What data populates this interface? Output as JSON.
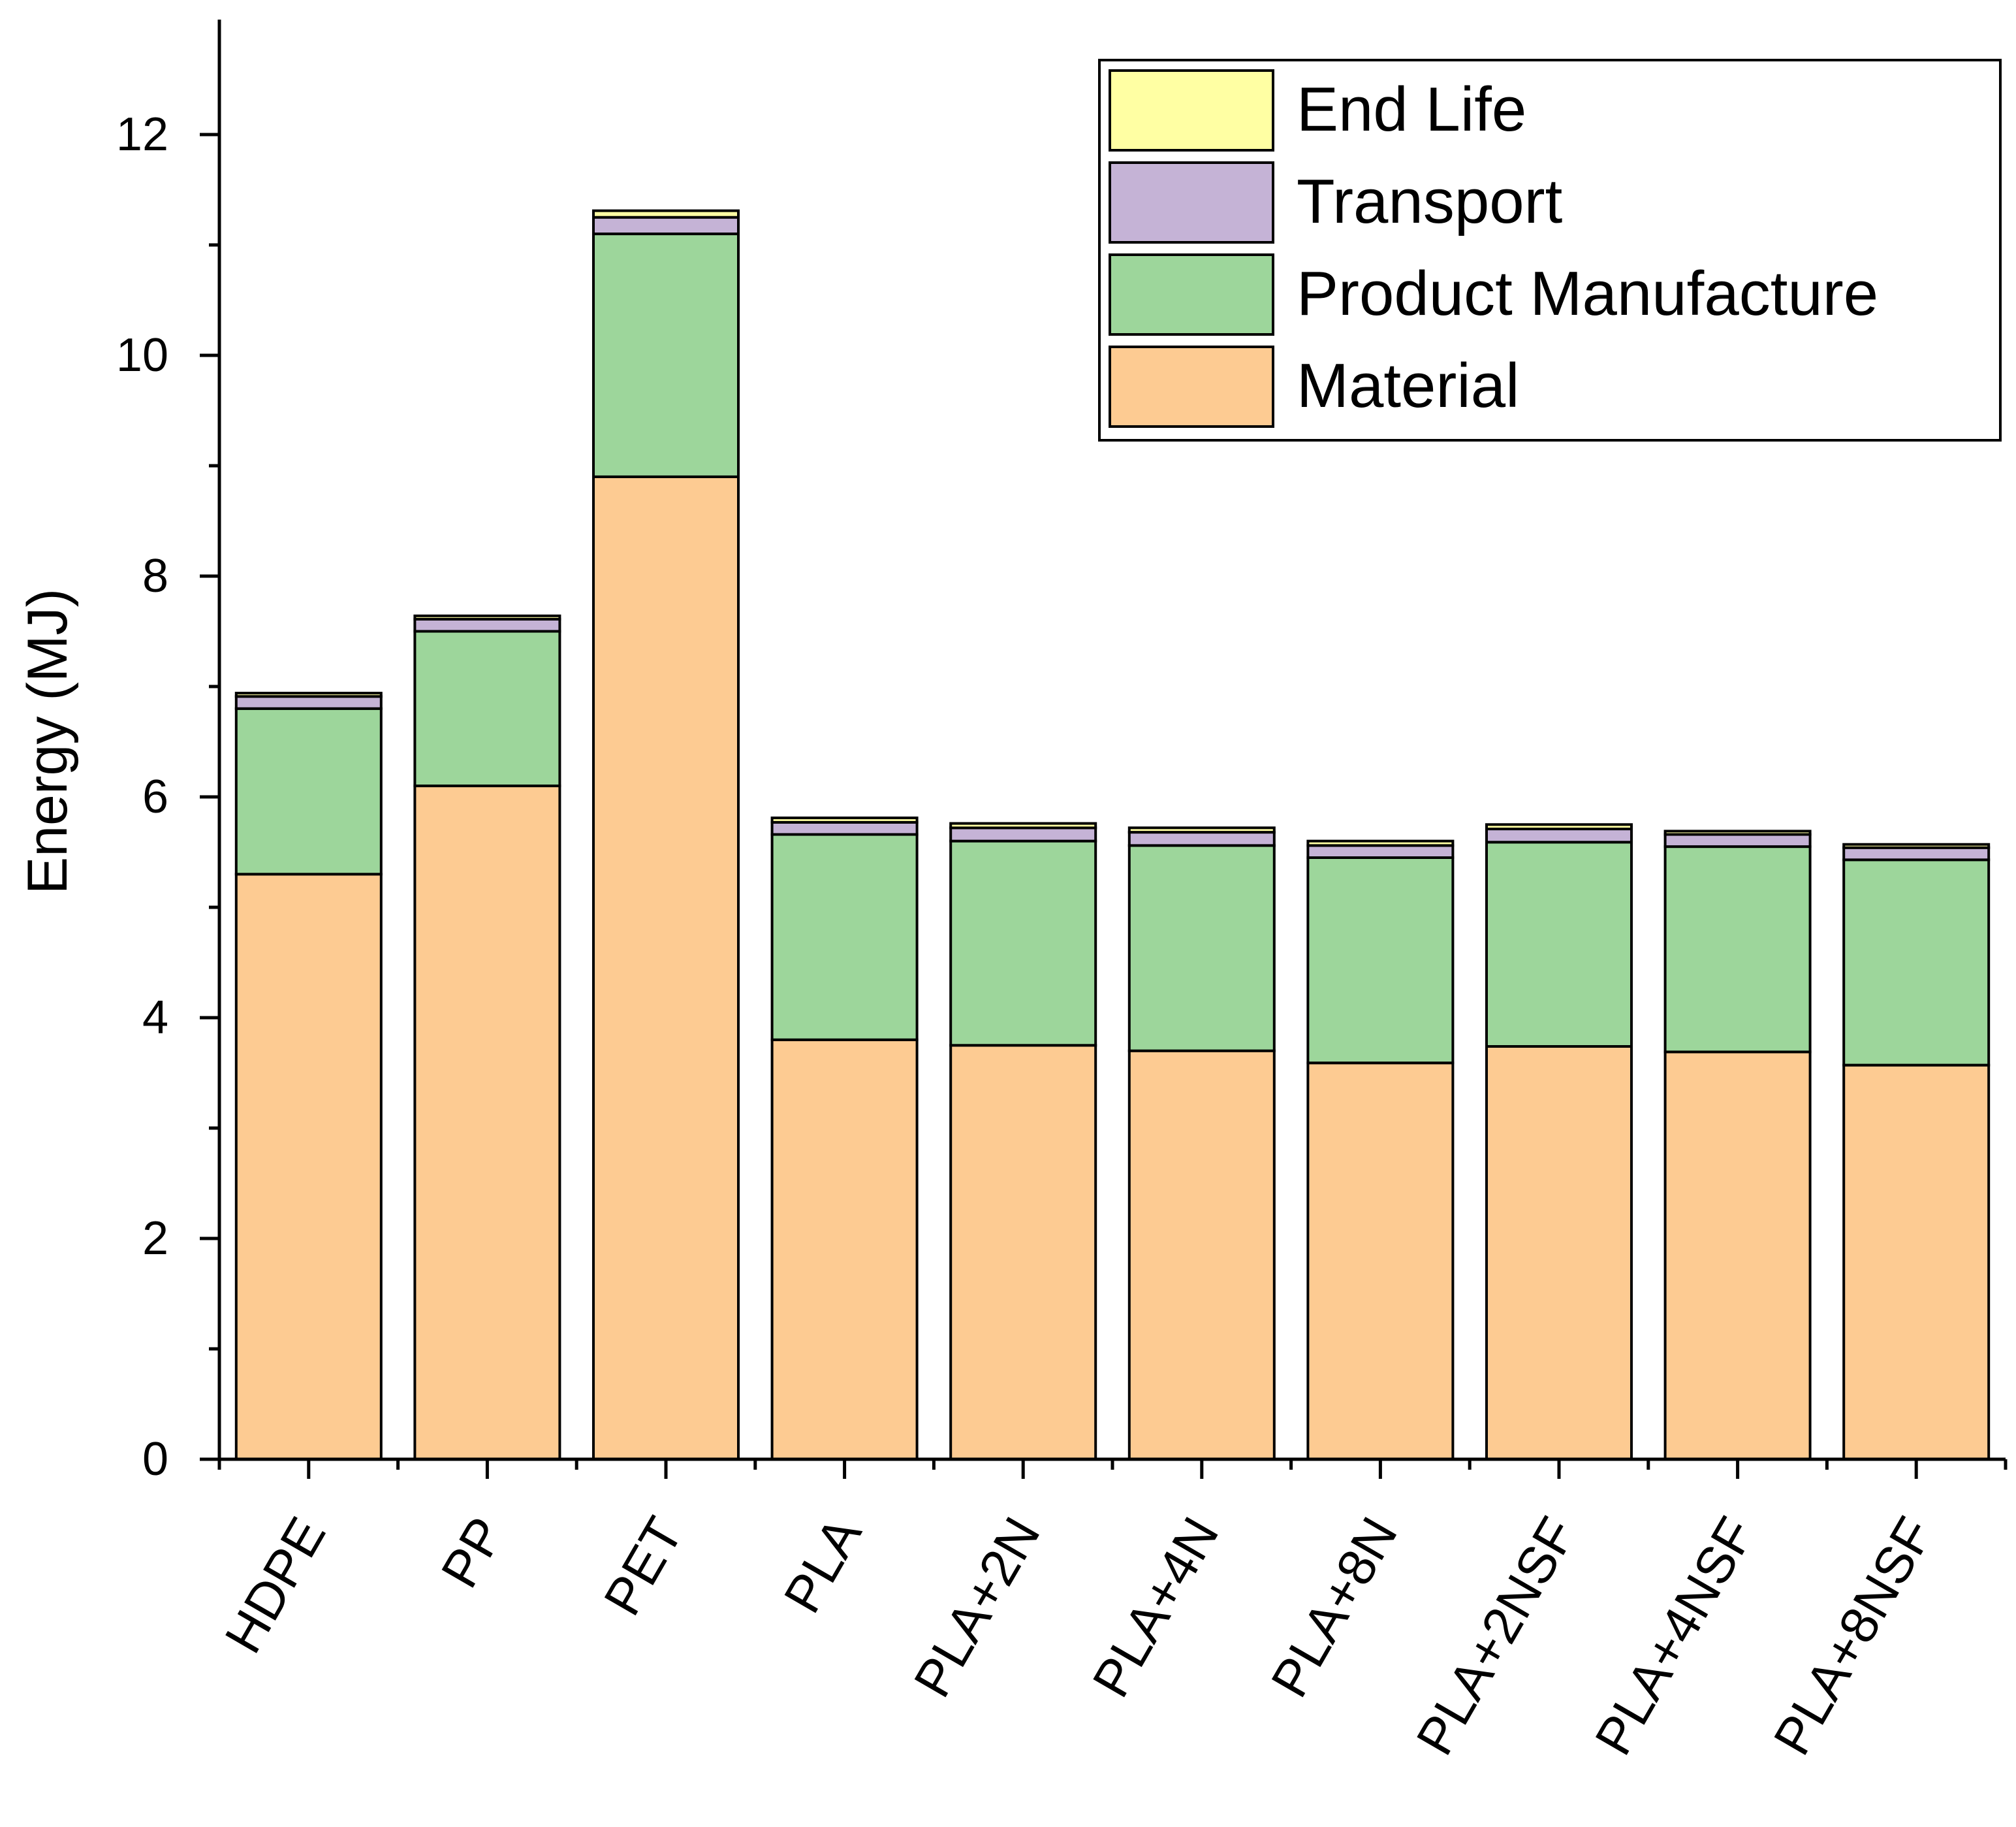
{
  "chart_data": {
    "type": "bar",
    "stacked": true,
    "ylabel": "Energy (MJ)",
    "xlabel": "",
    "ylim": [
      0,
      13
    ],
    "yticks": [
      0,
      2,
      4,
      6,
      8,
      10,
      12
    ],
    "grid": false,
    "legend_position": "top-right",
    "categories": [
      "HDPE",
      "PP",
      "PET",
      "PLA",
      "PLA+2N",
      "PLA+4N",
      "PLA+8N",
      "PLA+2NSF",
      "PLA+4NSF",
      "PLA+8NSF"
    ],
    "series": [
      {
        "name": "Material",
        "color": "#FDCB92",
        "values": [
          5.3,
          6.1,
          8.9,
          3.8,
          3.75,
          3.7,
          3.59,
          3.74,
          3.69,
          3.57
        ]
      },
      {
        "name": "Product Manufacture",
        "color": "#9DD69B",
        "values": [
          1.5,
          1.4,
          2.2,
          1.86,
          1.85,
          1.86,
          1.86,
          1.85,
          1.86,
          1.86
        ]
      },
      {
        "name": "Transport",
        "color": "#C5B3D6",
        "values": [
          0.11,
          0.11,
          0.15,
          0.11,
          0.12,
          0.12,
          0.11,
          0.12,
          0.11,
          0.11
        ]
      },
      {
        "name": "End Life",
        "color": "#FFFFA3",
        "values": [
          0.03,
          0.03,
          0.06,
          0.04,
          0.04,
          0.04,
          0.04,
          0.04,
          0.03,
          0.03
        ]
      }
    ],
    "legend_order": [
      "End Life",
      "Transport",
      "Product Manufacture",
      "Material"
    ]
  }
}
